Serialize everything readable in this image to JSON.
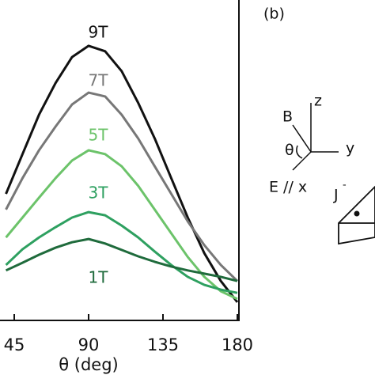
{
  "chart_data": {
    "type": "line",
    "x": [
      40,
      50,
      60,
      70,
      80,
      90,
      100,
      110,
      120,
      130,
      140,
      150,
      160,
      170,
      180
    ],
    "series": [
      {
        "name": "9T",
        "color": "#111111",
        "values": [
          39.5,
          51.9,
          64.2,
          74.1,
          82.2,
          85.7,
          84.0,
          77.8,
          67.9,
          56.8,
          44.4,
          32.1,
          21.0,
          12.3,
          5.7
        ]
      },
      {
        "name": "7T",
        "color": "#777777",
        "values": [
          34.6,
          44.4,
          53.1,
          60.5,
          67.4,
          71.1,
          69.9,
          64.2,
          56.8,
          48.1,
          39.5,
          30.9,
          23.5,
          17.3,
          12.3
        ]
      },
      {
        "name": "5T",
        "color": "#6cc36a",
        "values": [
          25.9,
          32.1,
          38.3,
          44.4,
          49.9,
          53.1,
          51.9,
          48.1,
          42.0,
          34.6,
          27.2,
          19.8,
          13.6,
          9.1,
          6.7
        ]
      },
      {
        "name": "3T",
        "color": "#2ea060",
        "values": [
          17.3,
          22.2,
          25.9,
          29.1,
          32.1,
          33.8,
          32.8,
          29.6,
          25.9,
          21.5,
          17.3,
          13.6,
          11.1,
          9.6,
          8.6
        ]
      },
      {
        "name": "1T",
        "color": "#1f6b3c",
        "values": [
          15.6,
          18.0,
          20.5,
          22.7,
          24.4,
          25.4,
          24.0,
          22.0,
          20.0,
          18.3,
          16.8,
          15.6,
          14.6,
          13.6,
          12.3
        ]
      }
    ],
    "x_label": "θ (deg)",
    "xlim": [
      0,
      180
    ],
    "xticks": [
      45,
      90,
      135,
      180
    ],
    "ylim": [
      0,
      100
    ]
  },
  "diagram": {
    "panel_label": "(b)",
    "labels": [
      "z",
      "y",
      "B",
      "θ",
      "E // x",
      "J",
      "-"
    ]
  }
}
